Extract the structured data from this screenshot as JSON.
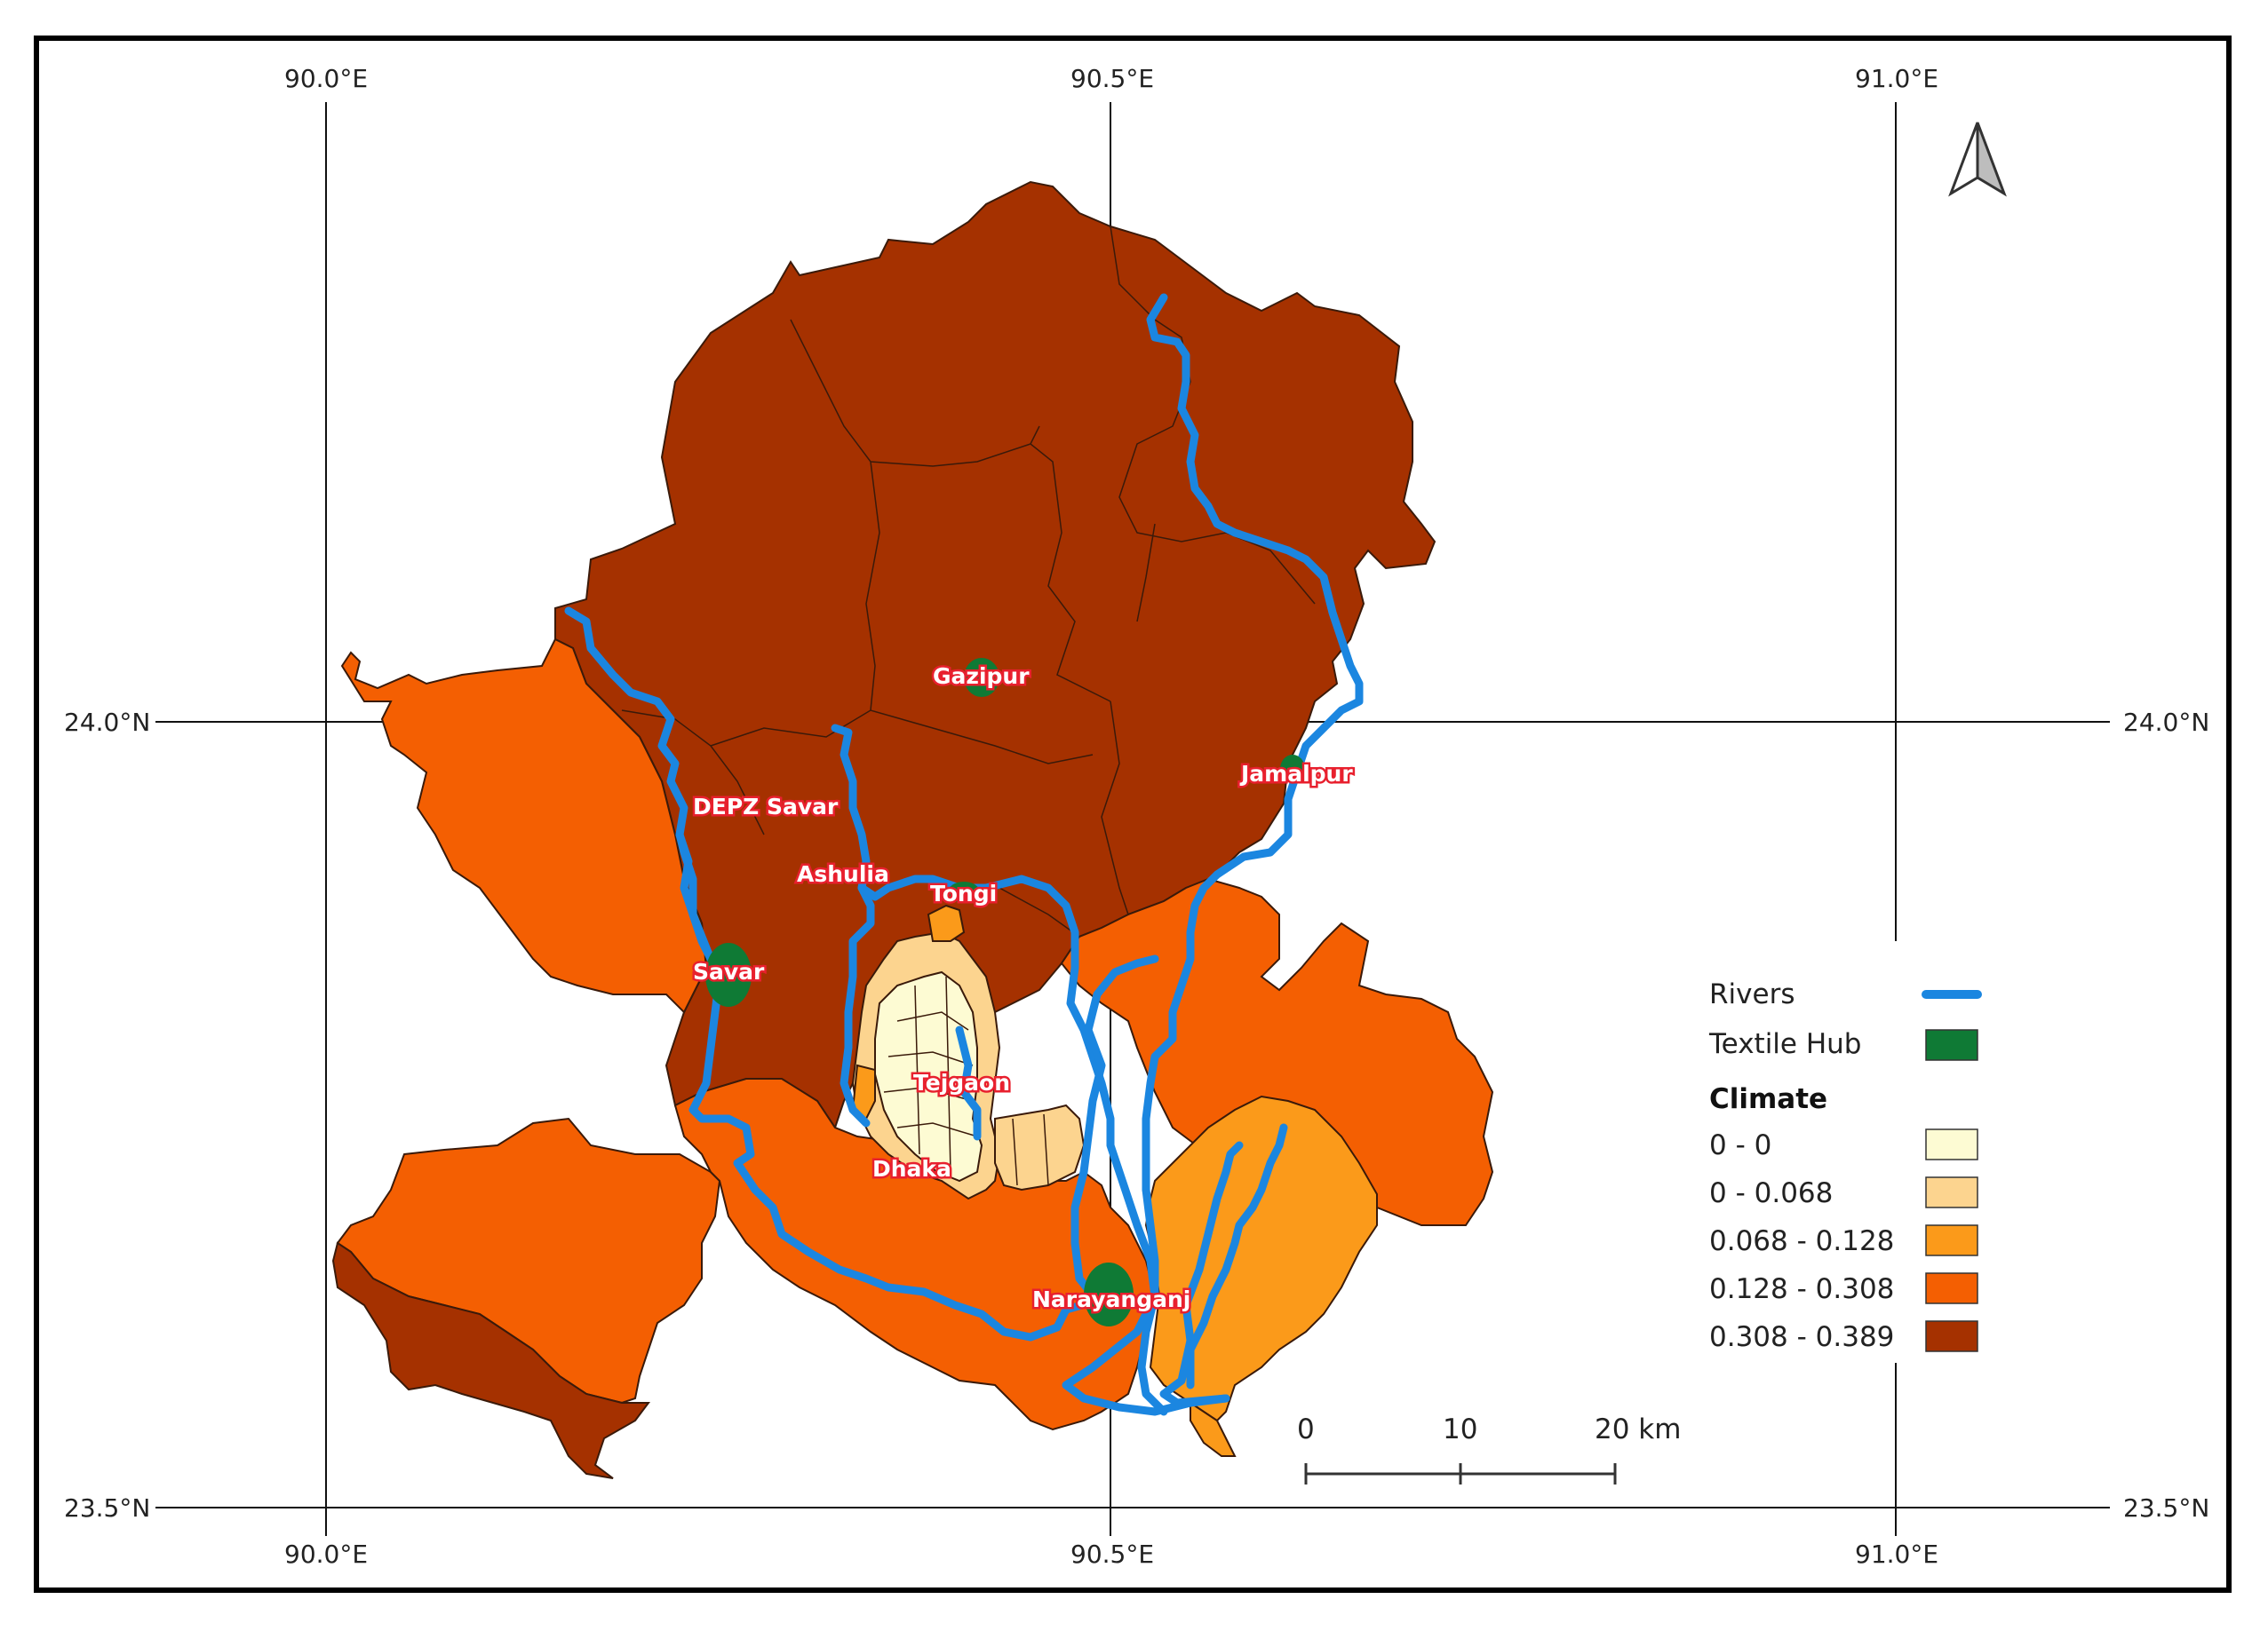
{
  "graticule": {
    "top_labels": [
      "90.0°E",
      "90.5°E",
      "91.0°E"
    ],
    "bottom_labels": [
      "90.0°E",
      "90.5°E",
      "91.0°E"
    ],
    "left_labels": [
      "24.0°N",
      "23.5°N"
    ],
    "right_labels": [
      "24.0°N",
      "23.5°N"
    ]
  },
  "hubs": [
    {
      "name": "Gazipur"
    },
    {
      "name": "Jamalpur"
    },
    {
      "name": "DEPZ Savar"
    },
    {
      "name": "Ashulia"
    },
    {
      "name": "Tongi"
    },
    {
      "name": "Savar"
    },
    {
      "name": "Tejgaon"
    },
    {
      "name": "Dhaka"
    },
    {
      "name": "Narayanganj"
    }
  ],
  "legend": {
    "rivers_label": "Rivers",
    "textile_label": "Textile Hub",
    "climate_title": "Climate",
    "classes": [
      {
        "label": "0 - 0",
        "color": "#fdfbd3"
      },
      {
        "label": "0 - 0.068",
        "color": "#fcd48f"
      },
      {
        "label": "0.068 - 0.128",
        "color": "#fb9a1a"
      },
      {
        "label": "0.128 - 0.308",
        "color": "#f45f02"
      },
      {
        "label": "0.308 - 0.389",
        "color": "#a53100"
      }
    ]
  },
  "colors": {
    "river": "#1b86e0",
    "textile_hub": "#0f7a35",
    "label_outline": "#e8202e"
  },
  "scale_bar": {
    "labels": [
      "0",
      "10",
      "20 km"
    ]
  },
  "north_arrow": {
    "icon": "north-arrow-icon"
  }
}
